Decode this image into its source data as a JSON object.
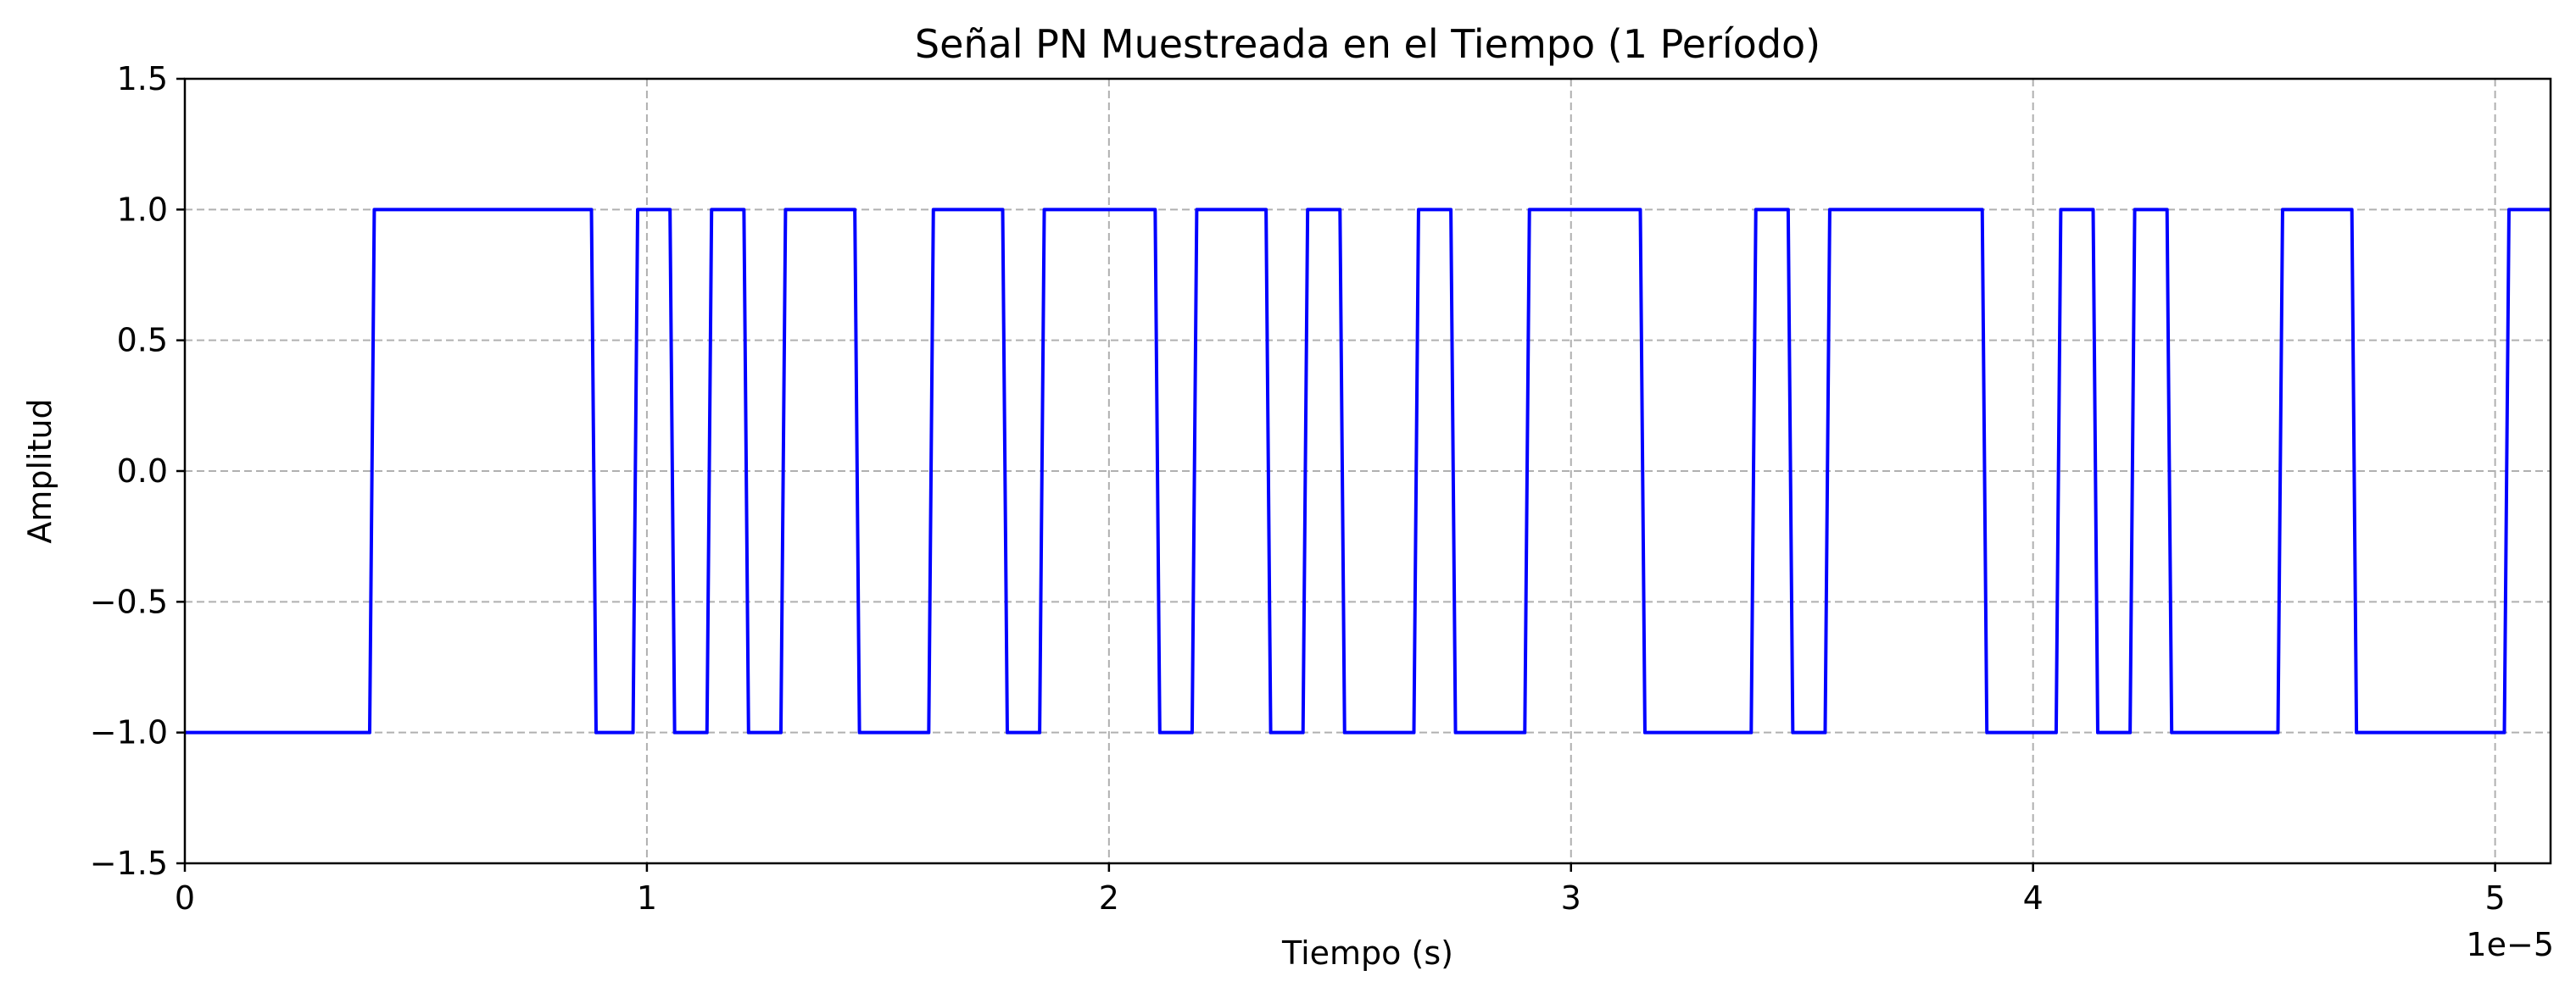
{
  "chart_data": {
    "type": "line",
    "title": "Señal PN Muestreada en el Tiempo (1 Período)",
    "xlabel": "Tiempo (s)",
    "ylabel": "Amplitud",
    "x_offset_label": "1e−5",
    "xlim": [
      0,
      5.12
    ],
    "ylim": [
      -1.5,
      1.5
    ],
    "x_scale": 1e-05,
    "xticks": [
      0,
      1,
      2,
      3,
      4,
      5
    ],
    "xtick_labels": [
      "0",
      "1",
      "2",
      "3",
      "4",
      "5"
    ],
    "yticks": [
      -1.5,
      -1.0,
      -0.5,
      0.0,
      0.5,
      1.0,
      1.5
    ],
    "ytick_labels": [
      "−1.5",
      "−1.0",
      "−0.5",
      "0.0",
      "0.5",
      "1.0",
      "1.5"
    ],
    "grid": true,
    "line_color": "#0000ff",
    "series": [
      {
        "x": [
          0,
          0.4,
          0.41,
          0.88,
          0.89,
          0.97,
          0.98,
          1.05,
          1.06,
          1.13,
          1.14,
          1.21,
          1.22,
          1.29,
          1.3,
          1.45,
          1.46,
          1.61,
          1.62,
          1.77,
          1.78,
          1.85,
          1.86,
          2.1,
          2.11,
          2.18,
          2.19,
          2.34,
          2.35,
          2.42,
          2.43,
          2.5,
          2.51,
          2.66,
          2.67,
          2.74,
          2.75,
          2.9,
          2.91,
          3.15,
          3.16,
          3.39,
          3.4,
          3.47,
          3.48,
          3.55,
          3.56,
          3.89,
          3.9,
          4.05,
          4.06,
          4.13,
          4.14,
          4.21,
          4.22,
          4.29,
          4.3,
          4.53,
          4.54,
          4.69,
          4.7,
          5.02,
          5.03,
          5.12
        ],
        "y": [
          -1,
          -1,
          1,
          1,
          -1,
          -1,
          1,
          1,
          -1,
          -1,
          1,
          1,
          -1,
          -1,
          1,
          1,
          -1,
          -1,
          1,
          1,
          -1,
          -1,
          1,
          1,
          -1,
          -1,
          1,
          1,
          -1,
          -1,
          1,
          1,
          -1,
          -1,
          1,
          1,
          -1,
          -1,
          1,
          1,
          -1,
          -1,
          1,
          1,
          -1,
          -1,
          1,
          1,
          -1,
          -1,
          1,
          1,
          -1,
          -1,
          1,
          1,
          -1,
          -1,
          1,
          1,
          -1,
          -1,
          1,
          1
        ]
      }
    ]
  }
}
